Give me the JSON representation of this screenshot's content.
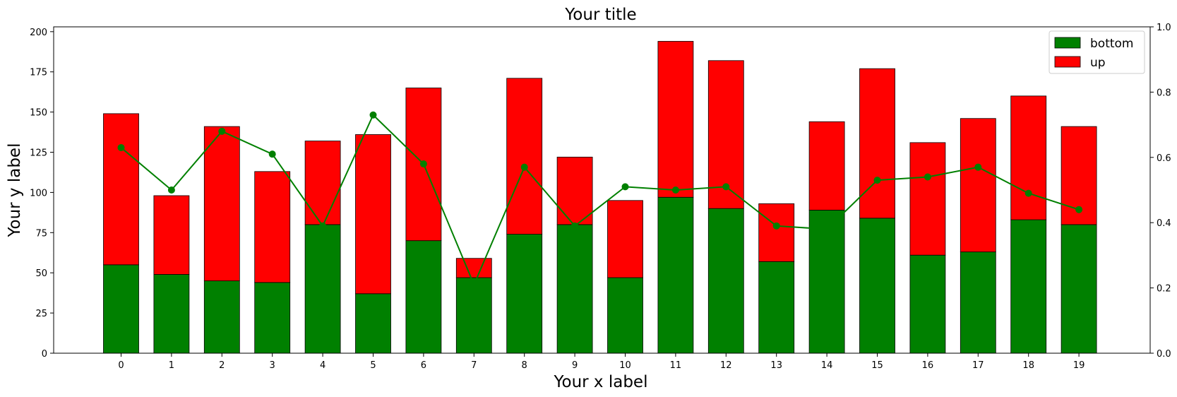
{
  "chart_data": {
    "type": "bar",
    "title": "Your title",
    "xlabel": "Your x label",
    "ylabel": "Your y label",
    "categories": [
      "0",
      "1",
      "2",
      "3",
      "4",
      "5",
      "6",
      "7",
      "8",
      "9",
      "10",
      "11",
      "12",
      "13",
      "14",
      "15",
      "16",
      "17",
      "18",
      "19"
    ],
    "stacked": true,
    "ylim": [
      0,
      203
    ],
    "yticks": [
      0,
      25,
      50,
      75,
      100,
      125,
      150,
      175,
      200
    ],
    "series": [
      {
        "name": "bottom",
        "color": "#008000",
        "values": [
          55,
          49,
          45,
          44,
          80,
          37,
          70,
          47,
          74,
          80,
          47,
          97,
          90,
          57,
          89,
          84,
          61,
          63,
          83,
          80
        ]
      },
      {
        "name": "up",
        "color": "#ff0000",
        "values": [
          94,
          49,
          96,
          69,
          52,
          99,
          95,
          12,
          97,
          42,
          48,
          97,
          92,
          36,
          55,
          93,
          70,
          83,
          77,
          61
        ]
      }
    ],
    "line": {
      "color": "#008000",
      "axis": "right",
      "values": [
        0.63,
        0.5,
        0.68,
        0.61,
        0.39,
        0.73,
        0.58,
        0.21,
        0.57,
        0.39,
        0.51,
        0.5,
        0.51,
        0.39,
        0.38,
        0.53,
        0.54,
        0.57,
        0.49,
        0.44
      ]
    },
    "y2lim": [
      0,
      1.0
    ],
    "y2ticks": [
      "0.0",
      "0.2",
      "0.4",
      "0.6",
      "0.8",
      "1.0"
    ],
    "legend": {
      "position": "top-right",
      "entries": [
        "bottom",
        "up"
      ]
    },
    "grid": false
  }
}
